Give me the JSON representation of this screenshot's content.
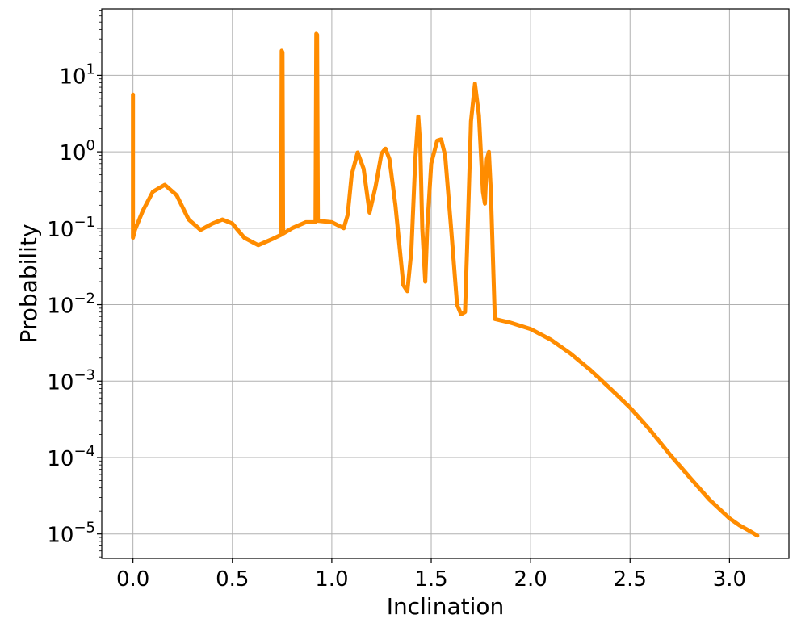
{
  "chart_data": {
    "type": "line",
    "title": "",
    "xlabel": "Inclination",
    "ylabel": "Probability",
    "xlim": [
      -0.157,
      3.299
    ],
    "ylim_log10": [
      -5.32,
      1.87
    ],
    "yscale": "log",
    "grid": true,
    "x_ticks": [
      {
        "value": 0.0,
        "label": "0.0"
      },
      {
        "value": 0.5,
        "label": "0.5"
      },
      {
        "value": 1.0,
        "label": "1.0"
      },
      {
        "value": 1.5,
        "label": "1.5"
      },
      {
        "value": 2.0,
        "label": "2.0"
      },
      {
        "value": 2.5,
        "label": "2.5"
      },
      {
        "value": 3.0,
        "label": "3.0"
      }
    ],
    "y_ticks": [
      {
        "exp": 1,
        "base": "10",
        "sup": "1"
      },
      {
        "exp": 0,
        "base": "10",
        "sup": "0"
      },
      {
        "exp": -1,
        "base": "10",
        "sup": "−1"
      },
      {
        "exp": -2,
        "base": "10",
        "sup": "−2"
      },
      {
        "exp": -3,
        "base": "10",
        "sup": "−3"
      },
      {
        "exp": -4,
        "base": "10",
        "sup": "−4"
      },
      {
        "exp": -5,
        "base": "10",
        "sup": "−5"
      }
    ],
    "series": [
      {
        "color": "#ff8c00",
        "x": [
          0.0,
          0.0,
          0.01,
          0.05,
          0.1,
          0.16,
          0.22,
          0.28,
          0.34,
          0.4,
          0.45,
          0.5,
          0.56,
          0.63,
          0.7,
          0.745,
          0.748,
          0.752,
          0.755,
          0.8,
          0.87,
          0.918,
          0.922,
          0.926,
          0.93,
          1.0,
          1.06,
          1.08,
          1.1,
          1.13,
          1.16,
          1.19,
          1.22,
          1.25,
          1.27,
          1.29,
          1.32,
          1.36,
          1.38,
          1.4,
          1.42,
          1.435,
          1.445,
          1.455,
          1.47,
          1.48,
          1.5,
          1.53,
          1.55,
          1.57,
          1.6,
          1.63,
          1.65,
          1.67,
          1.68,
          1.7,
          1.72,
          1.74,
          1.76,
          1.77,
          1.78,
          1.79,
          1.8,
          1.82,
          1.9,
          2.0,
          2.1,
          2.2,
          2.3,
          2.4,
          2.5,
          2.6,
          2.7,
          2.8,
          2.9,
          3.0,
          3.05,
          3.1,
          3.14
        ],
        "y": [
          5.6,
          0.075,
          0.095,
          0.17,
          0.3,
          0.37,
          0.27,
          0.13,
          0.095,
          0.115,
          0.13,
          0.115,
          0.075,
          0.06,
          0.072,
          0.082,
          21.0,
          20.0,
          0.085,
          0.1,
          0.12,
          0.12,
          35.0,
          34.0,
          0.125,
          0.12,
          0.1,
          0.15,
          0.5,
          0.98,
          0.6,
          0.16,
          0.35,
          0.95,
          1.1,
          0.8,
          0.2,
          0.018,
          0.015,
          0.05,
          0.8,
          2.9,
          1.2,
          0.1,
          0.02,
          0.1,
          0.7,
          1.4,
          1.45,
          0.9,
          0.1,
          0.01,
          0.0075,
          0.008,
          0.05,
          2.5,
          7.8,
          3.0,
          0.3,
          0.21,
          0.8,
          1.0,
          0.3,
          0.0065,
          0.0058,
          0.0048,
          0.0035,
          0.0023,
          0.0014,
          0.0008,
          0.00045,
          0.00023,
          0.00011,
          5.5e-05,
          2.8e-05,
          1.6e-05,
          1.3e-05,
          1.1e-05,
          9.5e-06
        ]
      }
    ]
  }
}
